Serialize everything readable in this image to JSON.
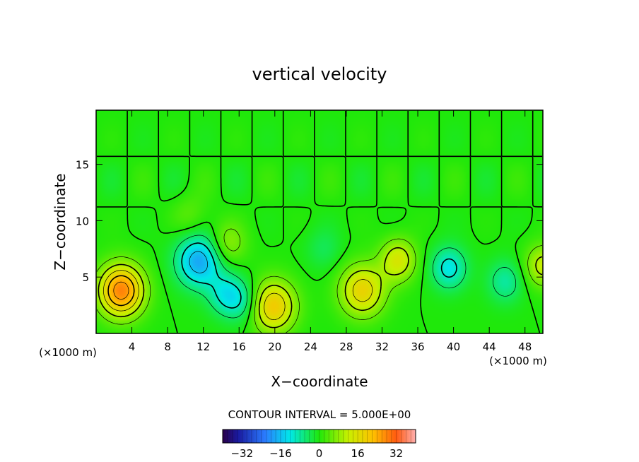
{
  "chart_data": {
    "type": "heatmap",
    "title": "vertical velocity",
    "xlabel": "X−coordinate",
    "ylabel": "Z−coordinate",
    "x_unit_label": "(×1000 m)",
    "y_unit_label": "(×1000 m)",
    "xlim": [
      0,
      50
    ],
    "ylim": [
      0,
      19.8
    ],
    "x_ticks": [
      4,
      8,
      12,
      16,
      20,
      24,
      28,
      32,
      36,
      40,
      44,
      48
    ],
    "y_ticks": [
      5,
      10,
      15
    ],
    "contour_interval_label": "CONTOUR INTERVAL = 5.000E+00",
    "colorbar": {
      "min": -40,
      "max": 40,
      "ticks": [
        -32,
        -16,
        0,
        16,
        32
      ]
    },
    "features": [
      {
        "x": 2.8,
        "z": 3.8,
        "value": 28
      },
      {
        "x": 11.5,
        "z": 6.4,
        "value": -18
      },
      {
        "x": 14.5,
        "z": 3.5,
        "value": -10
      },
      {
        "x": 16.5,
        "z": 2.8,
        "value": -8
      },
      {
        "x": 14.8,
        "z": 8.0,
        "value": 8
      },
      {
        "x": 19.8,
        "z": 2.4,
        "value": 20
      },
      {
        "x": 29.8,
        "z": 3.8,
        "value": 18
      },
      {
        "x": 33.8,
        "z": 6.5,
        "value": 14
      },
      {
        "x": 39.5,
        "z": 5.8,
        "value": -12
      },
      {
        "x": 45.8,
        "z": 4.6,
        "value": -8
      },
      {
        "x": 50.0,
        "z": 6.0,
        "value": 12
      },
      {
        "x": 25.5,
        "z": 7.5,
        "value": -4
      },
      {
        "x": 10.5,
        "z": 10.5,
        "value": 4
      }
    ]
  },
  "colors": {
    "background_green": "#1fe80a",
    "frame": "#000000"
  }
}
